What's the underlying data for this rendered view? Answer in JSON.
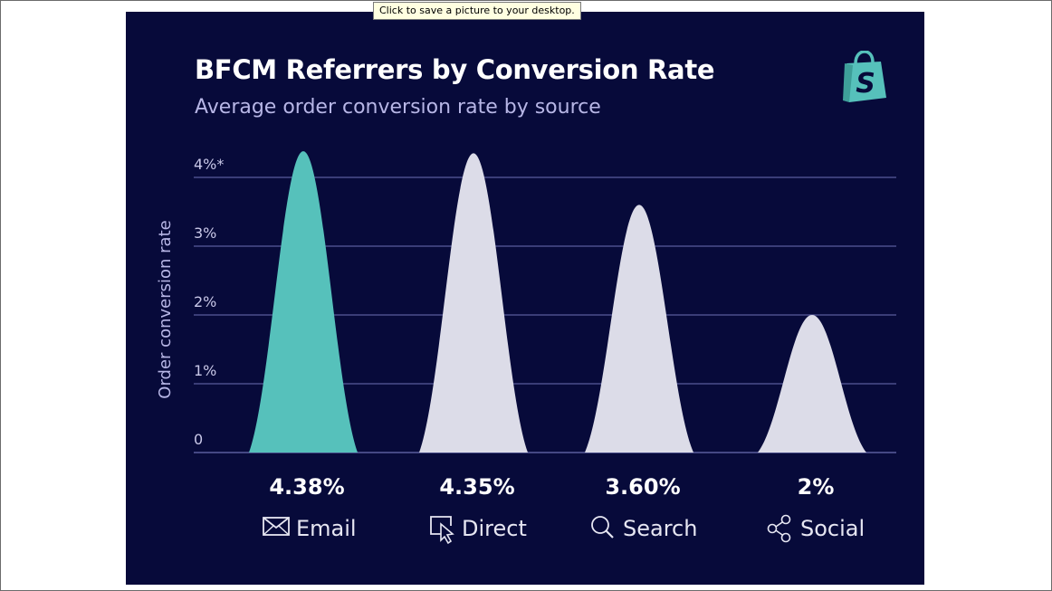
{
  "window": {
    "tooltip": "Click to save a picture to your desktop."
  },
  "icons": {
    "logo": "shopify-bag-logo",
    "categories": [
      "envelope-icon",
      "cursor-window-icon",
      "magnifier-icon",
      "share-icon"
    ]
  },
  "colors": {
    "background": "#070a3a",
    "highlight": "#56c1bb",
    "bar": "#dcdce8",
    "grid": "#5a5c9c"
  },
  "chart_data": {
    "type": "bar",
    "title": "BFCM Referrers by Conversion Rate",
    "subtitle": "Average order conversion rate by source",
    "ylabel": "Order conversion rate",
    "xlabel": "",
    "ylim": [
      0,
      4
    ],
    "yticks": [
      {
        "value": 0,
        "label": "0"
      },
      {
        "value": 1,
        "label": "1%"
      },
      {
        "value": 2,
        "label": "2%"
      },
      {
        "value": 3,
        "label": "3%"
      },
      {
        "value": 4,
        "label": "4%*"
      }
    ],
    "grid": true,
    "categories": [
      "Email",
      "Direct",
      "Search",
      "Social"
    ],
    "values": [
      4.38,
      4.35,
      3.6,
      2.0
    ],
    "value_labels": [
      "4.38%",
      "4.35%",
      "3.60%",
      "2%"
    ],
    "highlight_index": 0
  }
}
